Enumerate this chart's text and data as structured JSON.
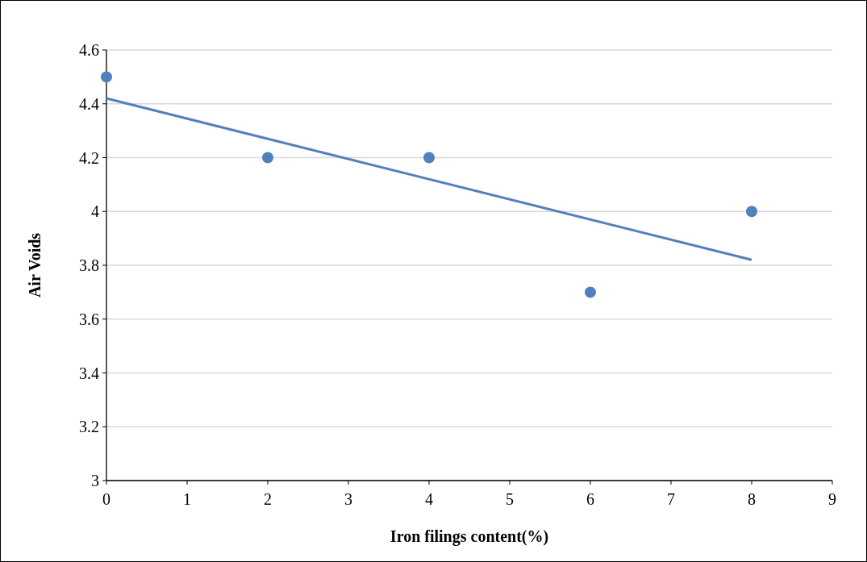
{
  "chart_data": {
    "type": "scatter",
    "xlabel": "Iron filings content(%)",
    "ylabel": "Air Voids",
    "xlim": [
      0,
      9
    ],
    "xticks": [
      0,
      1,
      2,
      3,
      4,
      5,
      6,
      7,
      8,
      9
    ],
    "ylim": [
      3,
      4.6
    ],
    "yticks": [
      3,
      {
        "value": 3.2,
        "label": "3.2"
      },
      {
        "value": 3.4,
        "label": "3.4"
      },
      {
        "value": 3.6,
        "label": "3.6"
      },
      {
        "value": 3.8,
        "label": "3.8"
      },
      4,
      {
        "value": 4.2,
        "label": "4.2"
      },
      {
        "value": 4.4,
        "label": "4.4"
      },
      {
        "value": 4.6,
        "label": "4.6"
      }
    ],
    "grid": "y",
    "series": [
      {
        "color": "#4f81bd",
        "marker": "circle",
        "x": [
          0,
          2,
          4,
          6,
          8
        ],
        "values": [
          4.5,
          4.2,
          4.2,
          3.7,
          4.0
        ]
      },
      {
        "type": "line",
        "color": "#4f81bd",
        "marker": "none",
        "line_style": "solid",
        "x": [
          0,
          8
        ],
        "values": [
          4.42,
          3.82
        ]
      }
    ]
  }
}
